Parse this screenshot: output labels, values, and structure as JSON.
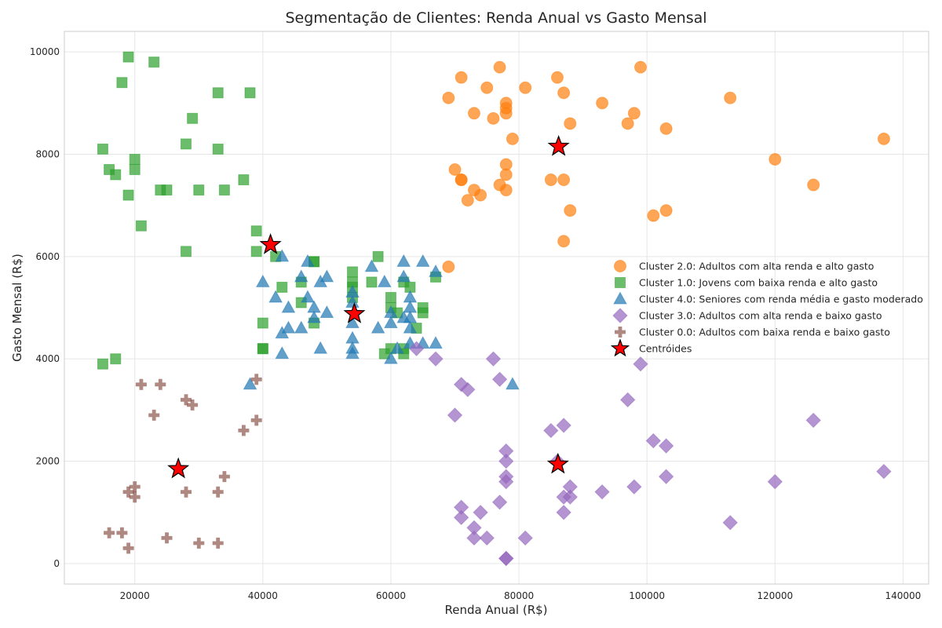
{
  "chart_data": {
    "type": "scatter",
    "title": "Segmentação de Clientes: Renda Anual vs Gasto Mensal",
    "xlabel": "Renda Anual (R$)",
    "ylabel": "Gasto Mensal (R$)",
    "xlim": [
      9000,
      144000
    ],
    "ylim": [
      -400,
      10400
    ],
    "xticks": [
      20000,
      40000,
      60000,
      80000,
      100000,
      120000,
      140000
    ],
    "yticks": [
      0,
      2000,
      4000,
      6000,
      8000,
      10000
    ],
    "grid": true,
    "legend_position": "center-right",
    "series": [
      {
        "name": "Cluster 2.0: Adultos com alta renda e alto gasto",
        "color": "#ff7f0e",
        "marker": "circle",
        "points": [
          [
            69000,
            9100
          ],
          [
            71000,
            9500
          ],
          [
            73000,
            8800
          ],
          [
            75000,
            9300
          ],
          [
            76000,
            8700
          ],
          [
            77000,
            9700
          ],
          [
            78000,
            9000
          ],
          [
            78000,
            8900
          ],
          [
            78000,
            8800
          ],
          [
            79000,
            8300
          ],
          [
            81000,
            9300
          ],
          [
            86000,
            9500
          ],
          [
            87000,
            9200
          ],
          [
            88000,
            8600
          ],
          [
            93000,
            9000
          ],
          [
            97000,
            8600
          ],
          [
            98000,
            8800
          ],
          [
            99000,
            9700
          ],
          [
            103000,
            8500
          ],
          [
            113000,
            9100
          ],
          [
            137000,
            8300
          ],
          [
            70000,
            7700
          ],
          [
            71000,
            7500
          ],
          [
            71000,
            7500
          ],
          [
            72000,
            7100
          ],
          [
            73000,
            7300
          ],
          [
            74000,
            7200
          ],
          [
            77000,
            7400
          ],
          [
            78000,
            7800
          ],
          [
            78000,
            7600
          ],
          [
            78000,
            7300
          ],
          [
            85000,
            7500
          ],
          [
            87000,
            7500
          ],
          [
            88000,
            6900
          ],
          [
            87000,
            6300
          ],
          [
            101000,
            6800
          ],
          [
            103000,
            6900
          ],
          [
            120000,
            7900
          ],
          [
            126000,
            7400
          ],
          [
            69000,
            5800
          ]
        ]
      },
      {
        "name": "Cluster 1.0: Jovens com baixa renda e alto gasto",
        "color": "#2ca02c",
        "marker": "square",
        "points": [
          [
            19000,
            9900
          ],
          [
            23000,
            9800
          ],
          [
            18000,
            9400
          ],
          [
            33000,
            9200
          ],
          [
            38000,
            9200
          ],
          [
            29000,
            8700
          ],
          [
            15000,
            8100
          ],
          [
            28000,
            8200
          ],
          [
            33000,
            8100
          ],
          [
            20000,
            7900
          ],
          [
            16000,
            7700
          ],
          [
            17000,
            7600
          ],
          [
            20000,
            7700
          ],
          [
            37000,
            7500
          ],
          [
            19000,
            7200
          ],
          [
            24000,
            7300
          ],
          [
            25000,
            7300
          ],
          [
            30000,
            7300
          ],
          [
            34000,
            7300
          ],
          [
            21000,
            6600
          ],
          [
            28000,
            6100
          ],
          [
            39000,
            6500
          ],
          [
            39000,
            6100
          ],
          [
            42000,
            6000
          ],
          [
            43000,
            5400
          ],
          [
            46000,
            5500
          ],
          [
            48000,
            5900
          ],
          [
            48000,
            5900
          ],
          [
            46000,
            5100
          ],
          [
            48000,
            4700
          ],
          [
            40000,
            4700
          ],
          [
            40000,
            4200
          ],
          [
            40000,
            4200
          ],
          [
            54000,
            5700
          ],
          [
            54000,
            5500
          ],
          [
            54000,
            5400
          ],
          [
            54000,
            5200
          ],
          [
            57000,
            5500
          ],
          [
            58000,
            6000
          ],
          [
            60000,
            5200
          ],
          [
            60000,
            5000
          ],
          [
            61000,
            4900
          ],
          [
            62000,
            5500
          ],
          [
            63000,
            5400
          ],
          [
            64000,
            4600
          ],
          [
            65000,
            5000
          ],
          [
            65000,
            4900
          ],
          [
            67000,
            5600
          ],
          [
            59000,
            4100
          ],
          [
            60000,
            4200
          ],
          [
            62000,
            4100
          ],
          [
            62000,
            4200
          ],
          [
            15000,
            3900
          ],
          [
            17000,
            4000
          ]
        ]
      },
      {
        "name": "Cluster 4.0: Seniores com renda média e gasto moderado",
        "color": "#1f77b4",
        "marker": "triangle",
        "points": [
          [
            43000,
            6000
          ],
          [
            40000,
            5500
          ],
          [
            42000,
            5200
          ],
          [
            44000,
            5000
          ],
          [
            46000,
            5600
          ],
          [
            47000,
            5900
          ],
          [
            47000,
            5200
          ],
          [
            48000,
            5000
          ],
          [
            48000,
            4800
          ],
          [
            49000,
            5500
          ],
          [
            50000,
            5600
          ],
          [
            50000,
            4900
          ],
          [
            43000,
            4500
          ],
          [
            44000,
            4600
          ],
          [
            46000,
            4600
          ],
          [
            43000,
            4100
          ],
          [
            49000,
            4200
          ],
          [
            54000,
            5300
          ],
          [
            54000,
            5100
          ],
          [
            54000,
            4700
          ],
          [
            54000,
            4400
          ],
          [
            54000,
            4200
          ],
          [
            54000,
            4100
          ],
          [
            57000,
            5800
          ],
          [
            58000,
            4600
          ],
          [
            59000,
            5500
          ],
          [
            60000,
            4900
          ],
          [
            60000,
            4700
          ],
          [
            60000,
            4000
          ],
          [
            61000,
            4200
          ],
          [
            62000,
            5900
          ],
          [
            62000,
            5600
          ],
          [
            62000,
            4800
          ],
          [
            63000,
            5200
          ],
          [
            63000,
            5000
          ],
          [
            63000,
            4800
          ],
          [
            63000,
            4600
          ],
          [
            63000,
            4300
          ],
          [
            65000,
            5900
          ],
          [
            65000,
            4300
          ],
          [
            67000,
            5700
          ],
          [
            67000,
            4300
          ],
          [
            38000,
            3500
          ],
          [
            79000,
            3500
          ]
        ]
      },
      {
        "name": "Cluster 3.0: Adultos com alta renda e baixo gasto",
        "color": "#9467bd",
        "marker": "diamond",
        "points": [
          [
            64000,
            4200
          ],
          [
            67000,
            4000
          ],
          [
            76000,
            4000
          ],
          [
            77000,
            3600
          ],
          [
            71000,
            3500
          ],
          [
            72000,
            3400
          ],
          [
            70000,
            2900
          ],
          [
            99000,
            3900
          ],
          [
            97000,
            3200
          ],
          [
            126000,
            2800
          ],
          [
            85000,
            2600
          ],
          [
            87000,
            2700
          ],
          [
            101000,
            2400
          ],
          [
            103000,
            2300
          ],
          [
            78000,
            2200
          ],
          [
            78000,
            2000
          ],
          [
            86000,
            2000
          ],
          [
            78000,
            1700
          ],
          [
            78000,
            1600
          ],
          [
            88000,
            1500
          ],
          [
            87000,
            1300
          ],
          [
            88000,
            1300
          ],
          [
            93000,
            1400
          ],
          [
            98000,
            1500
          ],
          [
            103000,
            1700
          ],
          [
            120000,
            1600
          ],
          [
            137000,
            1800
          ],
          [
            71000,
            1100
          ],
          [
            71000,
            900
          ],
          [
            74000,
            1000
          ],
          [
            77000,
            1200
          ],
          [
            73000,
            700
          ],
          [
            73000,
            500
          ],
          [
            75000,
            500
          ],
          [
            81000,
            500
          ],
          [
            87000,
            1000
          ],
          [
            113000,
            800
          ],
          [
            78000,
            100
          ],
          [
            78000,
            100
          ]
        ]
      },
      {
        "name": "Cluster 0.0: Adultos com baixa renda e baixo gasto",
        "color": "#8c564b",
        "marker": "plus",
        "points": [
          [
            21000,
            3500
          ],
          [
            24000,
            3500
          ],
          [
            39000,
            3600
          ],
          [
            28000,
            3200
          ],
          [
            29000,
            3100
          ],
          [
            23000,
            2900
          ],
          [
            39000,
            2800
          ],
          [
            37000,
            2600
          ],
          [
            34000,
            1700
          ],
          [
            28000,
            1400
          ],
          [
            33000,
            1400
          ],
          [
            19000,
            1400
          ],
          [
            20000,
            1500
          ],
          [
            20000,
            1300
          ],
          [
            16000,
            600
          ],
          [
            18000,
            600
          ],
          [
            25000,
            500
          ],
          [
            30000,
            400
          ],
          [
            33000,
            400
          ],
          [
            19000,
            300
          ]
        ]
      },
      {
        "name": "Centróides",
        "color": "#ff0000",
        "marker": "star",
        "points": [
          [
            86200,
            8150
          ],
          [
            41200,
            6230
          ],
          [
            54300,
            4880
          ],
          [
            86100,
            1940
          ],
          [
            26800,
            1850
          ]
        ]
      }
    ]
  }
}
